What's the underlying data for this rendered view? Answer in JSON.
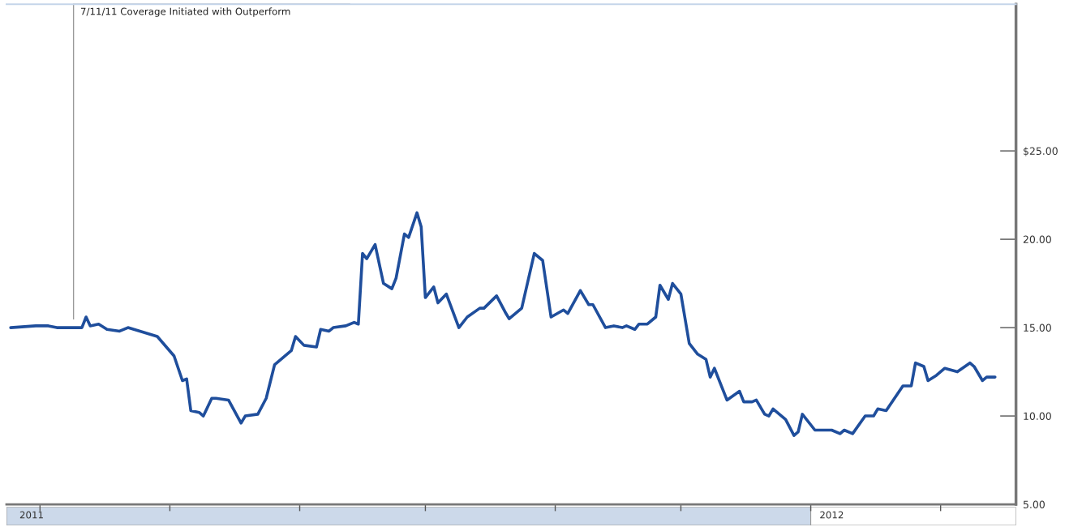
{
  "chart_data": {
    "type": "line",
    "x": [
      "2011-06-24",
      "2011-06-30",
      "2011-07-03",
      "2011-07-05",
      "2011-07-07",
      "2011-07-11",
      "2011-07-12",
      "2011-07-13",
      "2011-07-15",
      "2011-07-17",
      "2011-07-20",
      "2011-07-22",
      "2011-07-29",
      "2011-08-02",
      "2011-08-04",
      "2011-08-05",
      "2011-08-06",
      "2011-08-08",
      "2011-08-09",
      "2011-08-11",
      "2011-08-12",
      "2011-08-15",
      "2011-08-18",
      "2011-08-19",
      "2011-08-22",
      "2011-08-24",
      "2011-08-26",
      "2011-08-30",
      "2011-08-31",
      "2011-09-02",
      "2011-09-05",
      "2011-09-06",
      "2011-09-08",
      "2011-09-09",
      "2011-09-12",
      "2011-09-14",
      "2011-09-15",
      "2011-09-16",
      "2011-09-17",
      "2011-09-19",
      "2011-09-21",
      "2011-09-23",
      "2011-09-24",
      "2011-09-26",
      "2011-09-27",
      "2011-09-29",
      "2011-09-30",
      "2011-10-01",
      "2011-10-03",
      "2011-10-04",
      "2011-10-06",
      "2011-10-09",
      "2011-10-11",
      "2011-10-14",
      "2011-10-15",
      "2011-10-18",
      "2011-10-20",
      "2011-10-21",
      "2011-10-24",
      "2011-10-27",
      "2011-10-29",
      "2011-10-31",
      "2011-11-03",
      "2011-11-04",
      "2011-11-07",
      "2011-11-09",
      "2011-11-10",
      "2011-11-13",
      "2011-11-15",
      "2011-11-17",
      "2011-11-18",
      "2011-11-20",
      "2011-11-21",
      "2011-11-23",
      "2011-11-25",
      "2011-11-26",
      "2011-11-28",
      "2011-11-29",
      "2011-12-01",
      "2011-12-03",
      "2011-12-05",
      "2011-12-07",
      "2011-12-08",
      "2011-12-09",
      "2011-12-12",
      "2011-12-15",
      "2011-12-16",
      "2011-12-18",
      "2011-12-19",
      "2011-12-21",
      "2011-12-22",
      "2011-12-23",
      "2011-12-26",
      "2011-12-28",
      "2011-12-29",
      "2011-12-30",
      "2012-01-02",
      "2012-01-06",
      "2012-01-08",
      "2012-01-09",
      "2012-01-11",
      "2012-01-14",
      "2012-01-16",
      "2012-01-17",
      "2012-01-19",
      "2012-01-23",
      "2012-01-25",
      "2012-01-26",
      "2012-01-28",
      "2012-01-29",
      "2012-01-31",
      "2012-02-02",
      "2012-02-05",
      "2012-02-08",
      "2012-02-09",
      "2012-02-11",
      "2012-02-12",
      "2012-02-14"
    ],
    "series": [
      {
        "color": "#1f4e9c",
        "values": [
          15.0,
          15.1,
          15.1,
          15.0,
          15.0,
          15.0,
          15.6,
          15.1,
          15.2,
          14.9,
          14.8,
          15.0,
          14.5,
          13.4,
          12.0,
          12.1,
          10.3,
          10.2,
          10.0,
          11.0,
          11.0,
          10.9,
          9.6,
          10.0,
          10.1,
          11.0,
          12.9,
          13.7,
          14.5,
          14.0,
          13.9,
          14.9,
          14.8,
          15.0,
          15.1,
          15.3,
          15.2,
          19.2,
          18.9,
          19.7,
          17.5,
          17.2,
          17.8,
          20.3,
          20.1,
          21.5,
          20.7,
          16.7,
          17.3,
          16.4,
          16.9,
          15.0,
          15.6,
          16.1,
          16.1,
          16.8,
          15.9,
          15.5,
          16.1,
          19.2,
          18.8,
          15.6,
          16.0,
          15.8,
          17.1,
          16.3,
          16.3,
          15.0,
          15.1,
          15.0,
          15.1,
          14.9,
          15.2,
          15.2,
          15.6,
          17.4,
          16.6,
          17.5,
          16.9,
          14.1,
          13.5,
          13.2,
          12.2,
          12.7,
          10.9,
          11.4,
          10.8,
          10.8,
          10.9,
          10.1,
          10.0,
          10.4,
          9.8,
          8.9,
          9.1,
          10.1,
          9.2,
          9.2,
          9.0,
          9.2,
          9.0,
          10.0,
          10.0,
          10.4,
          10.3,
          11.7,
          11.7,
          13.0,
          12.8,
          12.0,
          12.3,
          12.7,
          12.5,
          13.0,
          12.8,
          12.0,
          12.2,
          12.2
        ]
      }
    ],
    "xlim": [
      "2011-06-23",
      "2012-02-19"
    ],
    "xticks": [
      {
        "value": "2011-07-01",
        "label": null
      },
      {
        "value": "2011-08-01",
        "label": null
      },
      {
        "value": "2011-09-01",
        "label": null
      },
      {
        "value": "2011-10-01",
        "label": null
      },
      {
        "value": "2011-11-01",
        "label": null
      },
      {
        "value": "2011-12-01",
        "label": null
      },
      {
        "value": "2012-01-01",
        "label": null
      },
      {
        "value": "2012-02-01",
        "label": null
      },
      {
        "value": "2011-06-29",
        "label": "2011"
      },
      {
        "value": "2012-01-06",
        "label": "2012"
      }
    ],
    "ylim": [
      5,
      33.3
    ],
    "yticks": [
      {
        "value": 5,
        "label": "5.00"
      },
      {
        "value": 10,
        "label": "10.00"
      },
      {
        "value": 15,
        "label": "15.00"
      },
      {
        "value": 20,
        "label": "20.00"
      },
      {
        "value": 25,
        "label": "$25.00"
      }
    ],
    "ref_lines": [
      {
        "axis": "x",
        "value": "2011-07-09",
        "label": "7/11/11 Coverage Initiated with Outperform",
        "color": "#999999"
      }
    ]
  }
}
